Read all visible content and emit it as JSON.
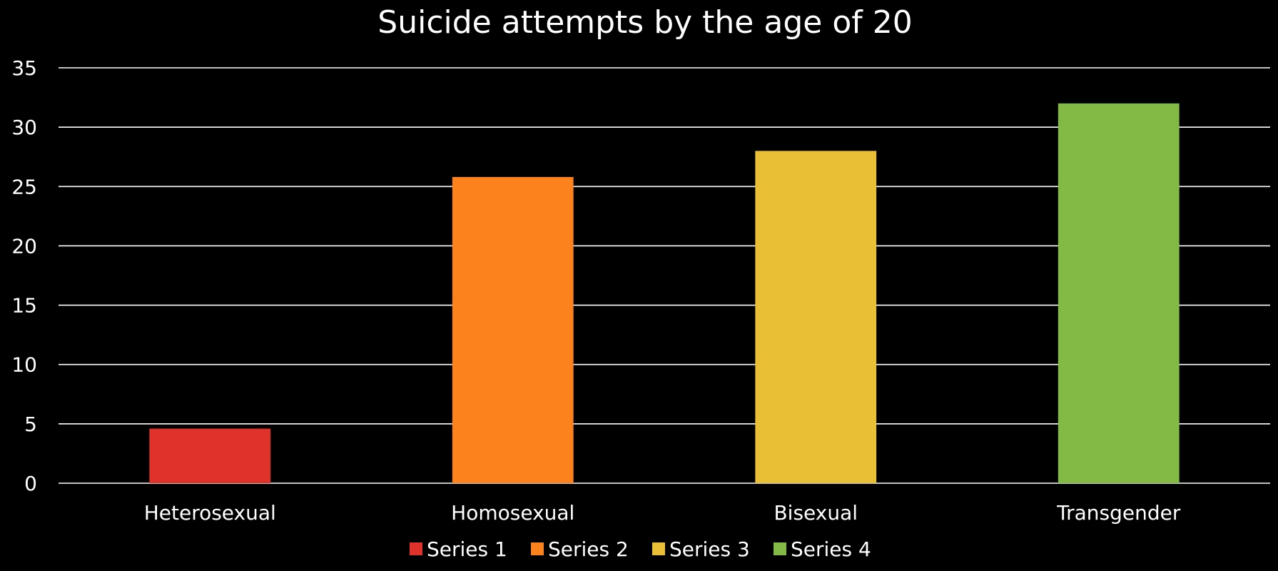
{
  "chart_data": {
    "type": "bar",
    "title": "Suicide attempts by the age of 20",
    "xlabel": "",
    "ylabel": "",
    "categories": [
      "Heterosexual",
      "Homosexual",
      "Bisexual",
      "Transgender"
    ],
    "series": [
      {
        "name": "Series 1",
        "color": "#e0322a",
        "values": [
          4.6,
          null,
          null,
          null
        ]
      },
      {
        "name": "Series 2",
        "color": "#fc821e",
        "values": [
          null,
          25.8,
          null,
          null
        ]
      },
      {
        "name": "Series 3",
        "color": "#e9bf36",
        "values": [
          null,
          null,
          28,
          null
        ]
      },
      {
        "name": "Series 4",
        "color": "#82ba45",
        "values": [
          null,
          null,
          null,
          32
        ]
      }
    ],
    "ylim": [
      0,
      35
    ],
    "yticks": [
      "0",
      "5",
      "10",
      "15",
      "20",
      "25",
      "30",
      "35"
    ],
    "grid": true,
    "legend_position": "bottom",
    "background": "#000000",
    "gridline_color": "#ffffff"
  }
}
